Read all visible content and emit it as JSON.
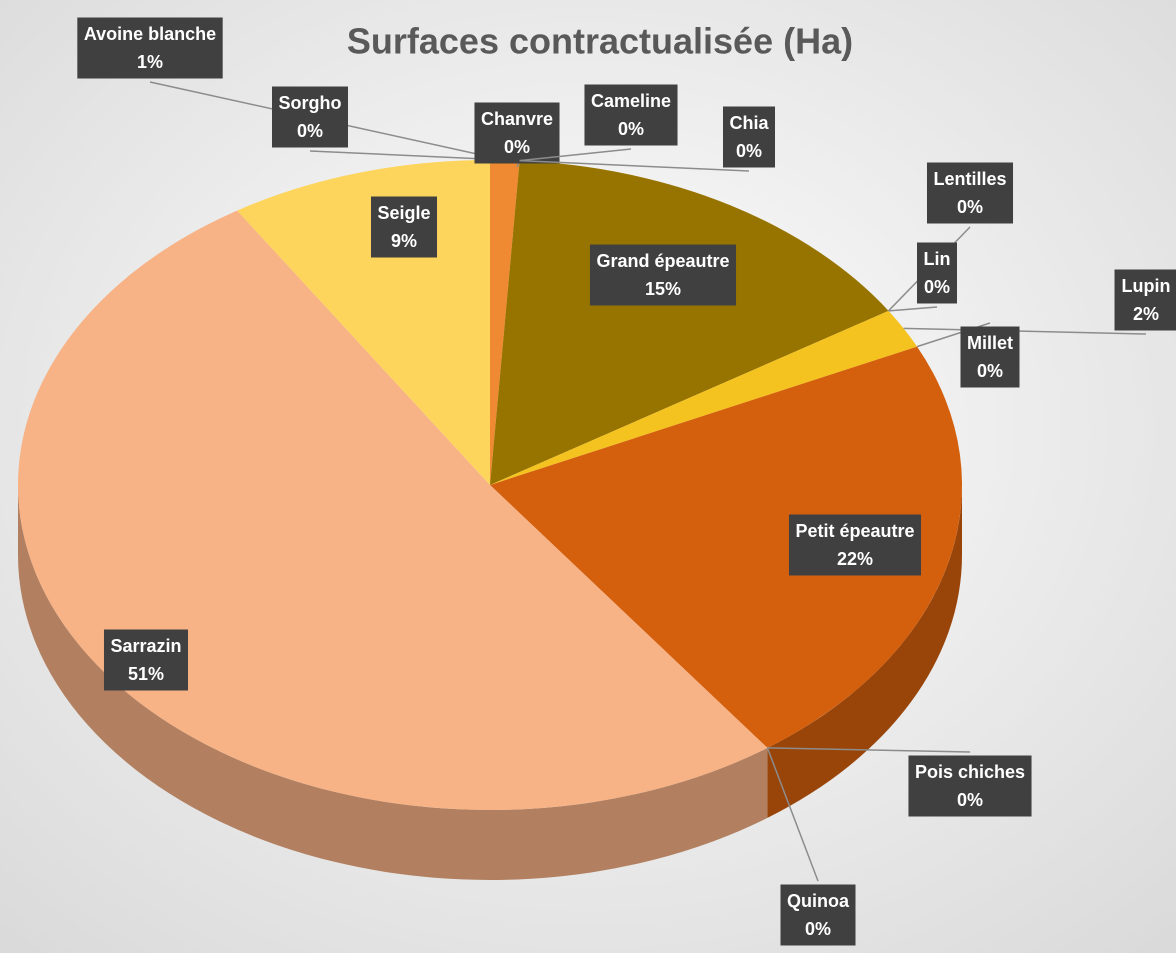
{
  "chart_data": {
    "type": "pie3d",
    "title": "Surfaces contractualisée (Ha)",
    "categories": [
      "Avoine blanche",
      "Sorgho",
      "Chanvre",
      "Cameline",
      "Chia",
      "Grand épeautre",
      "Lentilles",
      "Lin",
      "Lupin",
      "Millet",
      "Petit épeautre",
      "Pois chiches",
      "Quinoa",
      "Sarrazin",
      "Seigle"
    ],
    "values": [
      1,
      0,
      0,
      0,
      0,
      15,
      0,
      0,
      2,
      0,
      22,
      0,
      0,
      51,
      9
    ],
    "value_labels": [
      "1%",
      "0%",
      "0%",
      "0%",
      "0%",
      "15%",
      "0%",
      "0%",
      "2%",
      "0%",
      "22%",
      "0%",
      "0%",
      "51%",
      "9%"
    ],
    "colors": [
      "#f08a32",
      "#c0392b",
      "#e8702a",
      "#d96a1a",
      "#b8860b",
      "#977400",
      "#a07f10",
      "#c89a20",
      "#f5c320",
      "#e0a030",
      "#d4600e",
      "#f2c12e",
      "#4a8a2a",
      "#f7b285",
      "#fdd55c"
    ]
  }
}
